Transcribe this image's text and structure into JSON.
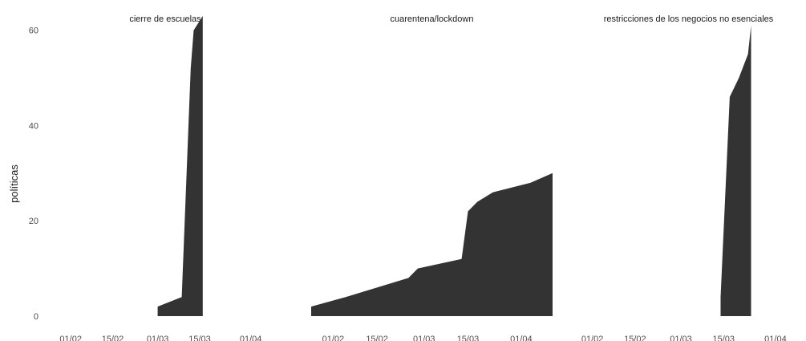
{
  "chart_data": {
    "type": "area",
    "ylabel": "políticas",
    "xlabel": "",
    "ylim": [
      0,
      65
    ],
    "yticks": [
      0,
      20,
      40,
      60
    ],
    "xticks": [
      "01/02",
      "15/02",
      "01/03",
      "15/03",
      "01/04"
    ],
    "xlim": [
      "2020-01-25",
      "2020-04-11"
    ],
    "grid": false,
    "legend": "none",
    "fill_color": "#333333",
    "panels": [
      {
        "name": "cierre de escuelas",
        "series": [
          {
            "x": "2020-03-01",
            "y": 0
          },
          {
            "x": "2020-03-01",
            "y": 2
          },
          {
            "x": "2020-03-09",
            "y": 4
          },
          {
            "x": "2020-03-12",
            "y": 52
          },
          {
            "x": "2020-03-13",
            "y": 60
          },
          {
            "x": "2020-03-16",
            "y": 63
          },
          {
            "x": "2020-03-16",
            "y": 0
          }
        ]
      },
      {
        "name": "cuarentena/lockdown",
        "series": [
          {
            "x": "2020-01-25",
            "y": 0
          },
          {
            "x": "2020-01-25",
            "y": 2
          },
          {
            "x": "2020-02-05",
            "y": 4
          },
          {
            "x": "2020-02-25",
            "y": 8
          },
          {
            "x": "2020-02-28",
            "y": 10
          },
          {
            "x": "2020-03-13",
            "y": 12
          },
          {
            "x": "2020-03-15",
            "y": 22
          },
          {
            "x": "2020-03-18",
            "y": 24
          },
          {
            "x": "2020-03-23",
            "y": 26
          },
          {
            "x": "2020-04-04",
            "y": 28
          },
          {
            "x": "2020-04-11",
            "y": 30
          },
          {
            "x": "2020-04-11",
            "y": 0
          }
        ]
      },
      {
        "name": "restricciones de los negocios no esenciales",
        "series": [
          {
            "x": "2020-03-14",
            "y": 0
          },
          {
            "x": "2020-03-14",
            "y": 4
          },
          {
            "x": "2020-03-17",
            "y": 46
          },
          {
            "x": "2020-03-20",
            "y": 50
          },
          {
            "x": "2020-03-23",
            "y": 55
          },
          {
            "x": "2020-03-24",
            "y": 61
          },
          {
            "x": "2020-03-24",
            "y": 0
          }
        ]
      }
    ]
  }
}
